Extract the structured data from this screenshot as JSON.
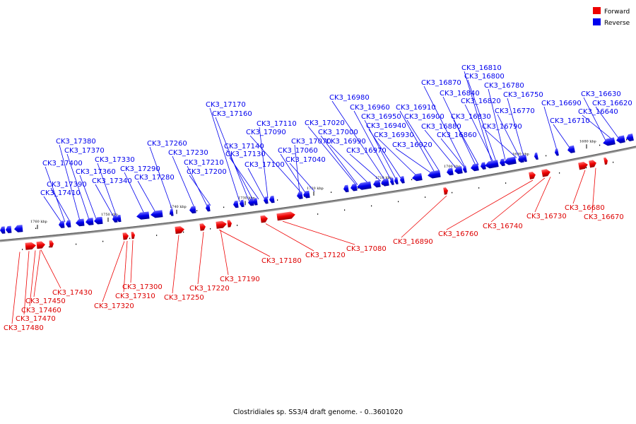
{
  "caption": "Clostridiales sp. SS3/4 draft genome. - 0..3601020",
  "legend": [
    {
      "label": "Forward",
      "color": "#ee0000"
    },
    {
      "label": "Reverse",
      "color": "#0000ee"
    }
  ],
  "colors": {
    "forward": "#ee0000",
    "reverse": "#0000ee",
    "backbone": "#888888"
  },
  "scale_ticks": [
    {
      "label": "1680 kbp"
    },
    {
      "label": "1690 kbp"
    },
    {
      "label": "1700 kbp"
    },
    {
      "label": "1710 kbp"
    },
    {
      "label": "1720 kbp"
    },
    {
      "label": "1730 kbp"
    },
    {
      "label": "1740 kbp"
    },
    {
      "label": "1750 kbp"
    },
    {
      "label": "1760 kbp"
    }
  ],
  "reverse_genes": [
    "CK3_16630",
    "CK3_16620",
    "CK3_16640",
    "CK3_16690",
    "CK3_16710",
    "CK3_16750",
    "CK3_16770",
    "CK3_16790",
    "CK3_16780",
    "CK3_16810",
    "CK3_16800",
    "CK3_16820",
    "CK3_16830",
    "CK3_16840",
    "CK3_16860",
    "CK3_16870",
    "CK3_16880",
    "CK3_16910",
    "CK3_16900",
    "CK3_16920",
    "CK3_16930",
    "CK3_16940",
    "CK3_16950",
    "CK3_16960",
    "CK3_16980",
    "CK3_16970",
    "CK3_16990",
    "CK3_17000",
    "CK3_17020",
    "CK3_17040",
    "CK3_17060",
    "CK3_17070",
    "CK3_17090",
    "CK3_17110",
    "CK3_17100",
    "CK3_17130",
    "CK3_17140",
    "CK3_17160",
    "CK3_17170",
    "CK3_17200",
    "CK3_17210",
    "CK3_17230",
    "CK3_17260",
    "CK3_17280",
    "CK3_17290",
    "CK3_17330",
    "CK3_17340",
    "CK3_17360",
    "CK3_17370",
    "CK3_17380",
    "CK3_17390",
    "CK3_17400",
    "CK3_17410"
  ],
  "forward_genes": [
    "CK3_16670",
    "CK3_16680",
    "CK3_16730",
    "CK3_16740",
    "CK3_16760",
    "CK3_16890",
    "CK3_17080",
    "CK3_17120",
    "CK3_17180",
    "CK3_17190",
    "CK3_17220",
    "CK3_17250",
    "CK3_17300",
    "CK3_17310",
    "CK3_17320",
    "CK3_17430",
    "CK3_17450",
    "CK3_17460",
    "CK3_17470",
    "CK3_17480"
  ]
}
